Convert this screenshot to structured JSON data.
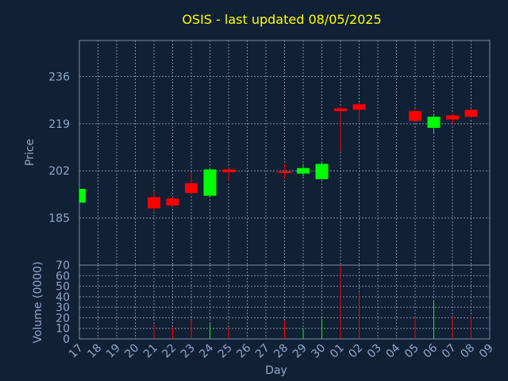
{
  "chart_data": {
    "type": "candlestick",
    "title": "OSIS - last updated 08/05/2025",
    "xlabel": "Day",
    "x_ticks": [
      "17",
      "18",
      "19",
      "20",
      "21",
      "22",
      "23",
      "24",
      "25",
      "26",
      "27",
      "28",
      "29",
      "30",
      "01",
      "02",
      "03",
      "04",
      "05",
      "06",
      "07",
      "08",
      "09"
    ],
    "price_panel": {
      "ylabel": "Price",
      "y_ticks": [
        185,
        202,
        219,
        236
      ],
      "ylim": [
        168,
        249
      ],
      "candles": [
        {
          "day": "17",
          "open": 190.5,
          "close": 195.5,
          "high": 196.0,
          "low": 190.0
        },
        {
          "day": "21",
          "open": 192.5,
          "close": 188.5,
          "high": 194.5,
          "low": 187.0
        },
        {
          "day": "22",
          "open": 192.0,
          "close": 189.5,
          "high": 192.5,
          "low": 189.0
        },
        {
          "day": "23",
          "open": 197.5,
          "close": 194.0,
          "high": 201.5,
          "low": 193.5
        },
        {
          "day": "24",
          "open": 193.0,
          "close": 202.5,
          "high": 203.0,
          "low": 192.5
        },
        {
          "day": "25",
          "open": 202.5,
          "close": 201.5,
          "high": 203.0,
          "low": 198.0
        },
        {
          "day": "28",
          "open": 201.8,
          "close": 201.3,
          "high": 204.5,
          "low": 199.0
        },
        {
          "day": "29",
          "open": 201.0,
          "close": 203.0,
          "high": 204.5,
          "low": 200.0
        },
        {
          "day": "30",
          "open": 199.0,
          "close": 204.5,
          "high": 205.0,
          "low": 199.0
        },
        {
          "day": "01",
          "open": 224.5,
          "close": 223.5,
          "high": 225.0,
          "low": 209.0
        },
        {
          "day": "02",
          "open": 226.0,
          "close": 224.0,
          "high": 226.5,
          "low": 220.0
        },
        {
          "day": "05",
          "open": 223.5,
          "close": 220.0,
          "high": 224.5,
          "low": 220.0
        },
        {
          "day": "06",
          "open": 217.5,
          "close": 221.5,
          "high": 222.5,
          "low": 215.5
        },
        {
          "day": "07",
          "open": 222.0,
          "close": 220.5,
          "high": 222.5,
          "low": 218.5
        },
        {
          "day": "08",
          "open": 224.0,
          "close": 221.5,
          "high": 224.5,
          "low": 221.0
        }
      ]
    },
    "volume_panel": {
      "ylabel": "Volume (0000)",
      "y_ticks": [
        0,
        10,
        20,
        30,
        40,
        50,
        60,
        70
      ],
      "ylim": [
        0,
        70
      ],
      "bars": [
        {
          "day": "17",
          "value": 0.5,
          "direction": "up"
        },
        {
          "day": "21",
          "value": 14,
          "direction": "down"
        },
        {
          "day": "22",
          "value": 11,
          "direction": "down"
        },
        {
          "day": "23",
          "value": 18,
          "direction": "down"
        },
        {
          "day": "24",
          "value": 14,
          "direction": "up"
        },
        {
          "day": "25",
          "value": 11,
          "direction": "down"
        },
        {
          "day": "28",
          "value": 17,
          "direction": "down"
        },
        {
          "day": "29",
          "value": 10,
          "direction": "up"
        },
        {
          "day": "30",
          "value": 19,
          "direction": "up"
        },
        {
          "day": "01",
          "value": 70,
          "direction": "down"
        },
        {
          "day": "02",
          "value": 45,
          "direction": "down"
        },
        {
          "day": "05",
          "value": 21,
          "direction": "down"
        },
        {
          "day": "06",
          "value": 37,
          "direction": "up"
        },
        {
          "day": "07",
          "value": 21,
          "direction": "down"
        },
        {
          "day": "08",
          "value": 22,
          "direction": "down"
        }
      ]
    },
    "grid": true,
    "colors": {
      "background": "#102035",
      "title": "#ffff00",
      "axis_text": "#8fa8c8",
      "grid": "#7a8ea8",
      "up": "#00ff00",
      "down": "#ff0000"
    }
  }
}
